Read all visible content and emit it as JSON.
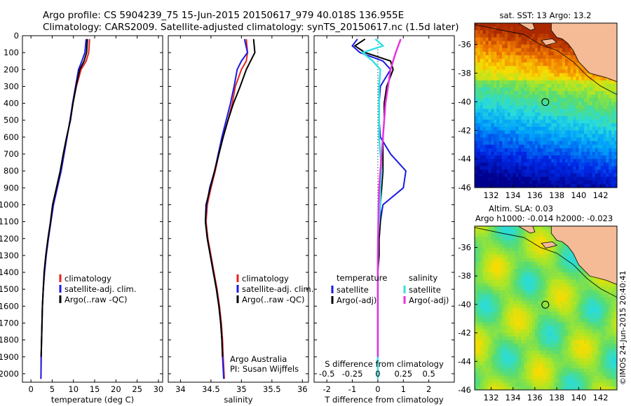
{
  "header": {
    "line1": "Argo profile: CS 5904239_75 15-Jun-2015 20150617_979 40.018S 136.955E",
    "line2": "Climatology: CARS2009. Satellite-adjusted climatology: synTS_20150617.nc (1.5d later)"
  },
  "credit": "©IMOS 24-Jun-2015 20:40:41",
  "colors": {
    "climatology": "#e8231e",
    "satellite": "#1a1ae6",
    "argo": "#000000",
    "salinity_sat": "#33e0e6",
    "salinity_argo": "#e633e0",
    "land": "#f4bb96"
  },
  "chart_data": [
    {
      "type": "line",
      "panel": "temperature",
      "xlabel": "temperature (deg C)",
      "xlim": [
        -2,
        31
      ],
      "xticks": [
        0,
        5,
        10,
        15,
        20,
        25,
        30
      ],
      "ylim": [
        2050,
        0
      ],
      "yticks": [
        0,
        100,
        200,
        300,
        400,
        500,
        600,
        700,
        800,
        900,
        1000,
        1100,
        1200,
        1300,
        1400,
        1500,
        1600,
        1700,
        1800,
        1900,
        2000
      ],
      "legend": [
        "climatology",
        "satellite-adj. clim.",
        "Argo(..raw -QC)"
      ],
      "series": [
        {
          "name": "climatology",
          "x": [
            13.8,
            13.6,
            13.0,
            11.8,
            10.7,
            9.9,
            9.2,
            8.5,
            7.8,
            7.1,
            6.2,
            5.3,
            4.7,
            4.1,
            3.6,
            3.2,
            2.9,
            2.7,
            2.6,
            2.5,
            2.4,
            2.35
          ],
          "y": [
            20,
            100,
            150,
            200,
            300,
            400,
            500,
            600,
            700,
            800,
            900,
            1000,
            1100,
            1200,
            1300,
            1400,
            1500,
            1600,
            1700,
            1800,
            1900,
            2030
          ]
        },
        {
          "name": "satellite-adj. clim.",
          "x": [
            13.0,
            12.7,
            12.0,
            11.2,
            10.5,
            9.8,
            9.2,
            8.5,
            7.8,
            7.1,
            6.2,
            5.3,
            4.7,
            4.1,
            3.6,
            3.2,
            2.9,
            2.7,
            2.6,
            2.5,
            2.4,
            2.35
          ],
          "y": [
            20,
            100,
            150,
            200,
            300,
            400,
            500,
            600,
            700,
            800,
            900,
            1000,
            1100,
            1200,
            1300,
            1400,
            1500,
            1600,
            1700,
            1800,
            1900,
            2030
          ]
        },
        {
          "name": "Argo(..raw -QC)",
          "x": [
            13.3,
            13.1,
            12.5,
            11.5,
            10.6,
            9.9,
            9.3,
            8.4,
            7.6,
            6.9,
            6.0,
            5.1,
            4.6,
            4.0,
            3.5,
            3.1,
            2.9,
            2.7,
            2.6,
            2.5,
            2.4
          ],
          "y": [
            20,
            100,
            150,
            200,
            300,
            400,
            500,
            600,
            700,
            800,
            900,
            1000,
            1100,
            1200,
            1300,
            1400,
            1500,
            1600,
            1700,
            1800,
            1900
          ]
        }
      ]
    },
    {
      "type": "line",
      "panel": "salinity",
      "xlabel": "salinity",
      "xlim": [
        33.8,
        36.1
      ],
      "xticks": [
        34,
        34.5,
        35,
        35.5,
        36
      ],
      "ylim": [
        2050,
        0
      ],
      "legend": [
        "climatology",
        "satellite-adj. clim.",
        "Argo(..raw -QC)"
      ],
      "annotations": [
        "Argo Australia",
        "PI: Susan Wijffels"
      ],
      "series": [
        {
          "name": "climatology",
          "x": [
            35.08,
            35.1,
            35.08,
            35.0,
            34.9,
            34.85,
            34.78,
            34.7,
            34.63,
            34.57,
            34.5,
            34.44,
            34.42,
            34.45,
            34.5,
            34.55,
            34.6,
            34.64,
            34.67,
            34.69,
            34.7,
            34.72
          ],
          "y": [
            20,
            100,
            150,
            200,
            300,
            400,
            500,
            600,
            700,
            800,
            900,
            1000,
            1100,
            1200,
            1300,
            1400,
            1500,
            1600,
            1700,
            1800,
            1900,
            2030
          ]
        },
        {
          "name": "satellite-adj. clim.",
          "x": [
            35.05,
            35.1,
            35.0,
            34.93,
            34.88,
            34.82,
            34.75,
            34.68,
            34.62,
            34.56,
            34.48,
            34.43,
            34.41,
            34.44,
            34.49,
            34.54,
            34.59,
            34.63,
            34.66,
            34.68,
            34.69,
            34.71
          ],
          "y": [
            20,
            100,
            150,
            200,
            300,
            400,
            500,
            600,
            700,
            800,
            900,
            1000,
            1100,
            1200,
            1300,
            1400,
            1500,
            1600,
            1700,
            1800,
            1900,
            2030
          ]
        },
        {
          "name": "Argo(..raw -QC)",
          "x": [
            35.2,
            35.22,
            35.15,
            35.08,
            34.98,
            34.87,
            34.78,
            34.7,
            34.63,
            34.56,
            34.49,
            34.42,
            34.41,
            34.44,
            34.49,
            34.54,
            34.59,
            34.63,
            34.66,
            34.68,
            34.69
          ],
          "y": [
            20,
            100,
            150,
            200,
            300,
            400,
            500,
            600,
            700,
            800,
            900,
            1000,
            1100,
            1200,
            1300,
            1400,
            1500,
            1600,
            1700,
            1800,
            1900
          ]
        }
      ]
    },
    {
      "type": "line",
      "panel": "difference",
      "xlabel": "T difference from climatology",
      "x2label": "S difference from climatology",
      "xlim": [
        -2.5,
        3
      ],
      "xticks": [
        -2,
        -1,
        0,
        1,
        2
      ],
      "x2ticks": [
        "-0.5",
        "-0.25",
        "0",
        "0.25",
        "0.5"
      ],
      "x2tick_positions": [
        -2,
        -1,
        0,
        1,
        2
      ],
      "ylim": [
        2050,
        0
      ],
      "legend_headers": [
        "temperature",
        "salinity"
      ],
      "legend": [
        "satellite",
        "Argo(-adj)",
        "satellite",
        "Argo(-adj)"
      ],
      "series": [
        {
          "name": "T satellite",
          "x": [
            -0.8,
            -1.0,
            -0.7,
            0.2,
            0.5,
            0.1,
            0.05,
            0.05,
            0.1,
            0.5,
            1.1,
            1.0,
            0.2,
            0.1,
            0.05,
            0.02,
            0,
            0,
            0,
            0,
            0,
            0
          ],
          "y": [
            20,
            60,
            100,
            150,
            200,
            300,
            400,
            500,
            600,
            700,
            800,
            900,
            1000,
            1100,
            1200,
            1300,
            1400,
            1500,
            1600,
            1700,
            1800,
            2030
          ]
        },
        {
          "name": "T Argo(-adj)",
          "x": [
            -0.5,
            -0.9,
            -0.5,
            0.5,
            0.6,
            0.35,
            0.25,
            0.25,
            0.2,
            0.2,
            0.2,
            0.15,
            0.1,
            0.1,
            0.05,
            0.05,
            0,
            0,
            0,
            0,
            0
          ],
          "y": [
            20,
            60,
            100,
            150,
            200,
            300,
            400,
            500,
            600,
            700,
            800,
            900,
            1000,
            1100,
            1200,
            1300,
            1400,
            1500,
            1600,
            1700,
            1900
          ]
        },
        {
          "name": "S satellite",
          "x": [
            -0.1,
            0.2,
            -0.6,
            -0.2,
            0.1,
            0.05,
            0.05,
            0.05,
            0.05,
            0.1,
            0.15,
            0.1,
            0.1,
            0.05,
            0,
            0,
            0,
            0,
            0,
            0,
            0
          ],
          "y": [
            20,
            60,
            100,
            150,
            200,
            300,
            400,
            500,
            600,
            700,
            800,
            900,
            1000,
            1100,
            1200,
            1300,
            1400,
            1500,
            1600,
            1700,
            2030
          ]
        },
        {
          "name": "S Argo(-adj)",
          "x": [
            0.9,
            0.8,
            0.7,
            0.6,
            0.5,
            0.4,
            0.3,
            0.25,
            0.2,
            0.15,
            0.1,
            0.05,
            0.03,
            0.02,
            0.01,
            0,
            0,
            0,
            0,
            0,
            0
          ],
          "y": [
            20,
            60,
            100,
            150,
            200,
            300,
            400,
            500,
            600,
            700,
            800,
            900,
            1000,
            1100,
            1200,
            1300,
            1400,
            1500,
            1600,
            1700,
            1900
          ]
        }
      ]
    },
    {
      "type": "heatmap",
      "panel": "sst-map",
      "title": "sat. SST: 13 Argo: 13.2",
      "xlim": [
        130.5,
        143.5
      ],
      "ylim": [
        -46,
        -34.5
      ],
      "xticks": [
        132,
        134,
        136,
        138,
        140,
        142
      ],
      "yticks": [
        -36,
        -38,
        -40,
        -42,
        -44,
        -46
      ],
      "marker": {
        "lon": 136.955,
        "lat": -40.018
      }
    },
    {
      "type": "heatmap",
      "panel": "sla-map",
      "title_line1": "Altim. SLA: 0.03",
      "title_line2": "Argo h1000: -0.014 h2000: -0.023",
      "xlim": [
        130.5,
        143.5
      ],
      "ylim": [
        -46,
        -34.5
      ],
      "xticks": [
        132,
        134,
        136,
        138,
        140,
        142
      ],
      "yticks": [
        -36,
        -38,
        -40,
        -42,
        -44,
        -46
      ],
      "marker": {
        "lon": 136.955,
        "lat": -40.018
      }
    }
  ]
}
